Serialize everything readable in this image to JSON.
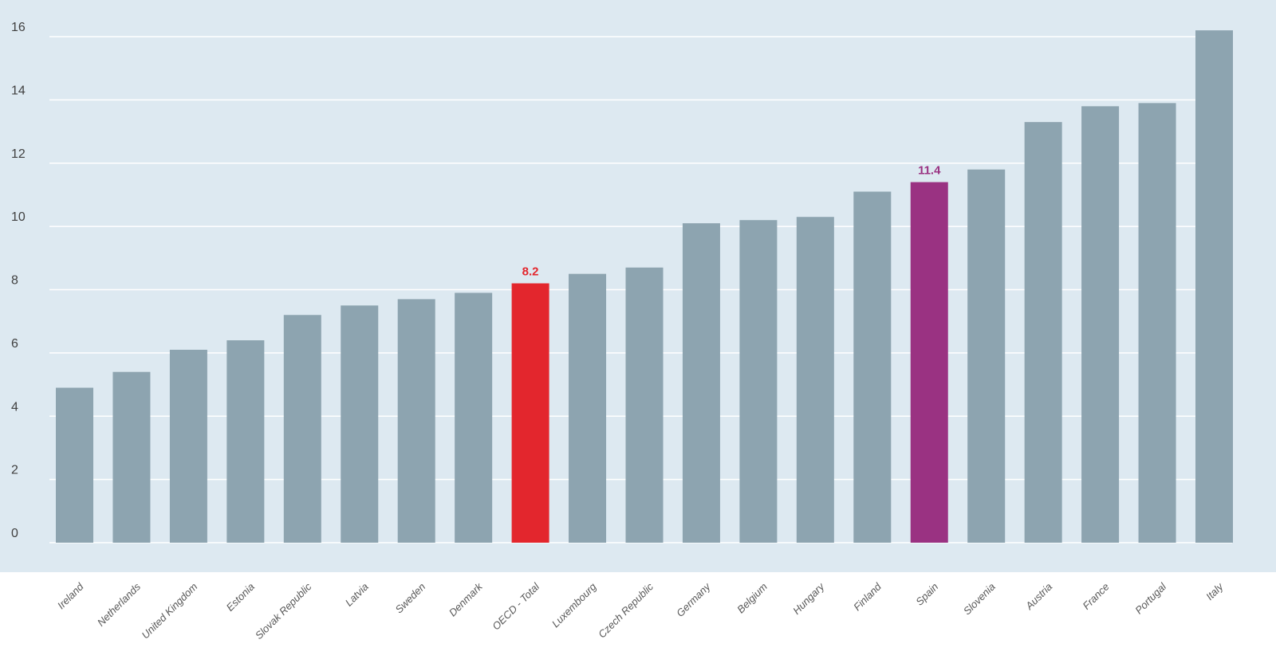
{
  "chart_data": {
    "type": "bar",
    "categories": [
      "Ireland",
      "Netherlands",
      "United Kingdom",
      "Estonia",
      "Slovak Republic",
      "Latvia",
      "Sweden",
      "Denmark",
      "OECD - Total",
      "Luxembourg",
      "Czech Republic",
      "Germany",
      "Belgium",
      "Hungary",
      "Finland",
      "Spain",
      "Slovenia",
      "Austria",
      "France",
      "Portugal",
      "Italy"
    ],
    "values": [
      4.9,
      5.4,
      6.1,
      6.4,
      7.2,
      7.5,
      7.7,
      7.9,
      8.2,
      8.5,
      8.7,
      10.1,
      10.2,
      10.3,
      11.1,
      11.4,
      11.8,
      13.3,
      13.8,
      13.9,
      16.2
    ],
    "title": "",
    "xlabel": "",
    "ylabel": "",
    "ylim": [
      0,
      16
    ],
    "yticks": [
      "0",
      "2",
      "4",
      "6",
      "8",
      "10",
      "12",
      "14",
      "16"
    ],
    "grid": true,
    "data_labels": {
      "OECD - Total": "8.2",
      "Spain": "11.4"
    },
    "colors": {
      "default": "#8da4b0",
      "highlight": {
        "OECD - Total": "#e3262d",
        "Spain": "#9a3282"
      },
      "label_highlight": {
        "OECD - Total": "#e3262d",
        "Spain": "#9a3282"
      },
      "background": "#dde9f1",
      "gridline": "#ffffff"
    }
  }
}
